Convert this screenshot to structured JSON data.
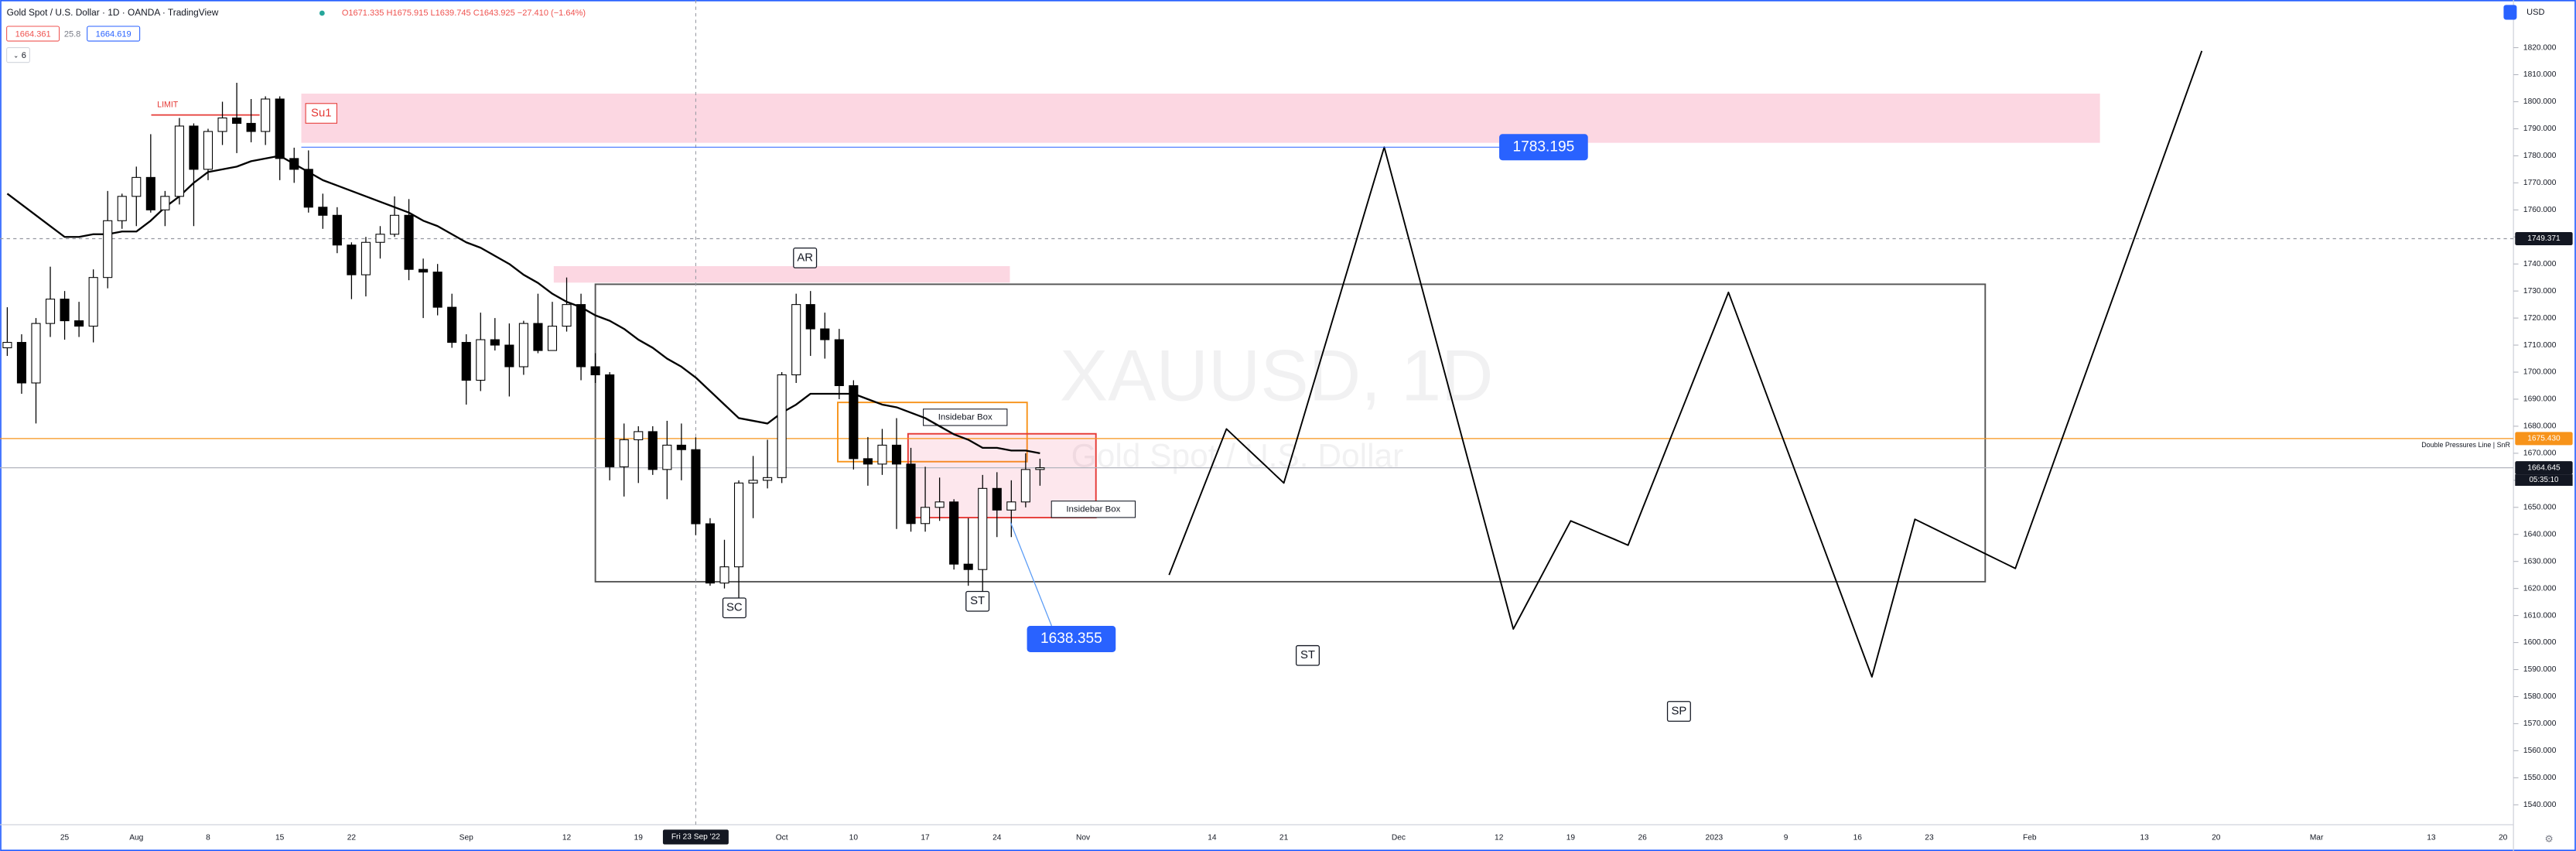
{
  "chart_data": {
    "type": "candlestick",
    "title": "Gold Spot / U.S. Dollar · 1D · OANDA · TradingView",
    "legend_values": "O1671.335 H1675.915 L1639.745 C1643.925 −27.410 (−1.64%)",
    "bid": 1664.361,
    "spread": 25.8,
    "ask": 1664.619,
    "indicators": 6,
    "currency": "USD",
    "watermark": "XAUUSD, 1D",
    "watermark_subtitle": "Gold Spot / U.S. Dollar",
    "crosshair_label": "Fri 23 Sep '22",
    "categories": [
      null,
      null,
      null,
      null,
      "25",
      null,
      null,
      null,
      null,
      "Aug",
      null,
      null,
      null,
      null,
      "8",
      null,
      null,
      null,
      null,
      "15",
      null,
      null,
      null,
      null,
      "22",
      null,
      null,
      null,
      null,
      null,
      null,
      null,
      "Sep",
      null,
      null,
      null,
      null,
      null,
      null,
      "12",
      null,
      null,
      null,
      null,
      "19",
      null,
      null,
      null,
      null,
      null,
      null,
      null,
      null,
      null,
      "Oct",
      null,
      null,
      null,
      null,
      "10",
      null,
      null,
      null,
      null,
      "17",
      null,
      null,
      null,
      null,
      "24",
      null,
      null,
      null,
      null,
      null,
      "Nov",
      null,
      null,
      null,
      null,
      null,
      null,
      null,
      null,
      "14",
      null,
      null,
      null,
      null,
      "21",
      null,
      null,
      null,
      null,
      null,
      null,
      null,
      "Dec",
      null,
      null,
      null,
      null,
      null,
      null,
      "12",
      null,
      null,
      null,
      null,
      "19",
      null,
      null,
      null,
      null,
      "26",
      null,
      null,
      null,
      null,
      "2023",
      null,
      null,
      null,
      null,
      "9",
      null,
      null,
      null,
      null,
      "16",
      null,
      null,
      null,
      null,
      "23",
      null,
      null,
      null,
      null,
      null,
      null,
      "Feb",
      null,
      null,
      null,
      null,
      null,
      null,
      null,
      "13",
      null,
      null,
      null,
      null,
      "20",
      null,
      null,
      null,
      null,
      null,
      null,
      "Mar",
      null,
      null,
      null,
      null,
      null,
      null,
      null,
      "13",
      null,
      null,
      null,
      null,
      "20"
    ],
    "open": [
      1709,
      1711,
      1696,
      1718,
      1727,
      1719,
      1717,
      1735,
      1756,
      1765,
      1772,
      1760,
      1765,
      1791,
      1775,
      1789,
      1794,
      1792,
      1789,
      1801,
      1779,
      1775,
      1761,
      1758,
      1747,
      1736,
      1748,
      1751,
      1758,
      1738,
      1737,
      1724,
      1711,
      1697,
      1712,
      1710,
      1702,
      1718,
      1708,
      1717,
      1725,
      1702,
      1699,
      1665,
      1675,
      1678,
      1664,
      1673,
      1671.335,
      1643.925,
      1622,
      1628,
      1659,
      1660,
      1661,
      1699,
      1725,
      1716,
      1712,
      1695,
      1668,
      1666,
      1673,
      1666,
      1644,
      1650,
      1652,
      1629,
      1627,
      1657,
      1649,
      1652,
      1664,
      null,
      null,
      null,
      null,
      null,
      null,
      null,
      null,
      null,
      null,
      null,
      null,
      null,
      null,
      null,
      null,
      null,
      null,
      null,
      null,
      null,
      null,
      null,
      null,
      null,
      null,
      null,
      null,
      null,
      null,
      null,
      null,
      null,
      null,
      null,
      null,
      null,
      null,
      null,
      null,
      null,
      null,
      null,
      null,
      null,
      null,
      null,
      null,
      null,
      null,
      null,
      null,
      null,
      null,
      null,
      null,
      null,
      null,
      null,
      null,
      null,
      null,
      null,
      null,
      null,
      null,
      null,
      null,
      null,
      null,
      null,
      null,
      null,
      null,
      null,
      null,
      null,
      null,
      null,
      null,
      null,
      null,
      null,
      null,
      null,
      null,
      null,
      null,
      null,
      null,
      null,
      null,
      null,
      null,
      null,
      null,
      null,
      null,
      null,
      null,
      null,
      null
    ],
    "high": [
      1724,
      1714,
      1720,
      1739,
      1730,
      1726,
      1738,
      1767,
      1766,
      1776,
      1788,
      1767,
      1794,
      1792,
      1790,
      1800,
      1807,
      1801,
      1802,
      1802,
      1783,
      1782,
      1766,
      1761,
      1748,
      1750,
      1754,
      1765,
      1764,
      1742,
      1740,
      1729,
      1714,
      1722,
      1720,
      1718,
      1719,
      1729,
      1726,
      1735,
      1729,
      1707,
      1700,
      1681,
      1680,
      1680,
      1682,
      1681,
      1675.915,
      1646,
      1638,
      1660,
      1669,
      1675,
      1700,
      1729,
      1730,
      1722,
      1716,
      1697,
      1676,
      1679,
      1683,
      1672,
      1665,
      1661,
      1653,
      1646,
      1662,
      1663,
      1660,
      1670,
      1668,
      null,
      null,
      null,
      null,
      null,
      null,
      null,
      null,
      null,
      null,
      null,
      null,
      null,
      null,
      null,
      null,
      null,
      null,
      null,
      null,
      null,
      null,
      null,
      null,
      null,
      null,
      null,
      null,
      null,
      null,
      null,
      null,
      null,
      null,
      null,
      null,
      null,
      null,
      null,
      null,
      null,
      null,
      null,
      null,
      null,
      null,
      null,
      null,
      null,
      null,
      null,
      null,
      null,
      null,
      null,
      null,
      null,
      null,
      null,
      null,
      null,
      null,
      null,
      null,
      null,
      null,
      null,
      null,
      null,
      null,
      null,
      null,
      null,
      null,
      null,
      null,
      null,
      null,
      null,
      null,
      null,
      null,
      null,
      null,
      null,
      null,
      null,
      null,
      null,
      null,
      null,
      null,
      null,
      null,
      null,
      null,
      null,
      null,
      null,
      null,
      null,
      null
    ],
    "low": [
      1706,
      1692,
      1681,
      1713,
      1712,
      1713,
      1711,
      1731,
      1753,
      1754,
      1759,
      1754,
      1762,
      1754,
      1771,
      1784,
      1781,
      1785,
      1784,
      1771,
      1770,
      1759,
      1753,
      1744,
      1727,
      1728,
      1742,
      1750,
      1734,
      1720,
      1721,
      1709,
      1688,
      1693,
      1708,
      1691,
      1699,
      1707,
      1708,
      1715,
      1697,
      1696,
      1660,
      1654,
      1659,
      1662,
      1653,
      1660,
      1639.745,
      1621,
      1620,
      1614,
      1646,
      1657,
      1659,
      1696,
      1706,
      1705,
      1690,
      1664,
      1658,
      1662,
      1642,
      1641,
      1641,
      1645,
      1627,
      1621,
      1618,
      1639,
      1639,
      1650,
      1658,
      null,
      null,
      null,
      null,
      null,
      null,
      null,
      null,
      null,
      null,
      null,
      null,
      null,
      null,
      null,
      null,
      null,
      null,
      null,
      null,
      null,
      null,
      null,
      null,
      null,
      null,
      null,
      null,
      null,
      null,
      null,
      null,
      null,
      null,
      null,
      null,
      null,
      null,
      null,
      null,
      null,
      null,
      null,
      null,
      null,
      null,
      null,
      null,
      null,
      null,
      null,
      null,
      null,
      null,
      null,
      null,
      null,
      null,
      null,
      null,
      null,
      null,
      null,
      null,
      null,
      null,
      null,
      null,
      null,
      null,
      null,
      null,
      null,
      null,
      null,
      null,
      null,
      null,
      null,
      null,
      null,
      null,
      null,
      null,
      null,
      null,
      null,
      null,
      null,
      null,
      null,
      null,
      null,
      null,
      null,
      null,
      null,
      null,
      null,
      null,
      null,
      null
    ],
    "close": [
      1711,
      1696,
      1718,
      1727,
      1719,
      1717,
      1735,
      1756,
      1765,
      1772,
      1760,
      1765,
      1791,
      1775,
      1789,
      1794,
      1792,
      1789,
      1801,
      1779,
      1775,
      1761,
      1758,
      1747,
      1736,
      1748,
      1751,
      1758,
      1738,
      1737,
      1724,
      1711,
      1697,
      1712,
      1710,
      1702,
      1718,
      1708,
      1717,
      1725,
      1702,
      1699,
      1665,
      1675,
      1678,
      1664,
      1673,
      1671.335,
      1643.925,
      1622,
      1628,
      1659,
      1660,
      1661,
      1699,
      1725,
      1716,
      1712,
      1695,
      1668,
      1666,
      1673,
      1666,
      1644,
      1650,
      1652,
      1629,
      1627,
      1657,
      1649,
      1652,
      1664,
      1664.645,
      null,
      null,
      null,
      null,
      null,
      null,
      null,
      null,
      null,
      null,
      null,
      null,
      null,
      null,
      null,
      null,
      null,
      null,
      null,
      null,
      null,
      null,
      null,
      null,
      null,
      null,
      null,
      null,
      null,
      null,
      null,
      null,
      null,
      null,
      null,
      null,
      null,
      null,
      null,
      null,
      null,
      null,
      null,
      null,
      null,
      null,
      null,
      null,
      null,
      null,
      null,
      null,
      null,
      null,
      null,
      null,
      null,
      null,
      null,
      null,
      null,
      null,
      null,
      null,
      null,
      null,
      null,
      null,
      null,
      null,
      null,
      null,
      null,
      null,
      null,
      null,
      null,
      null,
      null,
      null,
      null,
      null,
      null,
      null,
      null,
      null,
      null,
      null,
      null,
      null,
      null,
      null,
      null,
      null,
      null,
      null,
      null,
      null,
      null,
      null,
      null,
      null
    ],
    "ma": {
      "color": "#000000",
      "values": [
        1766,
        1762,
        1758,
        1754,
        1750,
        1750,
        1751,
        1751,
        1752,
        1752,
        1756,
        1761,
        1765,
        1770,
        1774,
        1775,
        1776,
        1778,
        1779,
        1780,
        1777,
        1774,
        1771,
        1769,
        1767,
        1765,
        1763,
        1761,
        1759,
        1756,
        1754,
        1751,
        1748,
        1746,
        1743,
        1740,
        1736,
        1733,
        1729,
        1726,
        1724,
        1721,
        1719,
        1716,
        1712,
        1709,
        1705,
        1702,
        1698,
        1693,
        1688,
        1683,
        1682,
        1681,
        1685,
        1688,
        1692,
        1692,
        1692,
        1692,
        1690,
        1688,
        1687,
        1685,
        1683,
        1680,
        1677,
        1675,
        1672,
        1672,
        1671,
        1671,
        1670,
        null,
        null,
        null,
        null,
        null,
        null,
        null,
        null,
        null,
        null,
        null,
        null,
        null,
        null,
        null,
        null,
        null,
        null,
        null,
        null,
        null,
        null,
        null,
        null,
        null,
        null,
        null,
        null,
        null,
        null,
        null,
        null,
        null,
        null,
        null,
        null,
        null,
        null,
        null,
        null,
        null,
        null,
        null,
        null,
        null,
        null,
        null,
        null,
        null,
        null,
        null,
        null,
        null,
        null,
        null,
        null,
        null,
        null,
        null,
        null,
        null,
        null,
        null,
        null,
        null,
        null,
        null,
        null,
        null,
        null,
        null,
        null,
        null,
        null,
        null,
        null,
        null,
        null,
        null,
        null,
        null,
        null,
        null,
        null,
        null,
        null,
        null,
        null,
        null,
        null,
        null,
        null,
        null,
        null,
        null,
        null,
        null,
        null,
        null,
        null,
        null,
        null
      ]
    },
    "projection": {
      "color": "#000000",
      "values": [
        null,
        null,
        null,
        null,
        null,
        null,
        null,
        null,
        null,
        null,
        null,
        null,
        null,
        null,
        null,
        null,
        null,
        null,
        null,
        null,
        null,
        null,
        null,
        null,
        null,
        null,
        null,
        null,
        null,
        null,
        null,
        null,
        null,
        null,
        null,
        null,
        null,
        null,
        null,
        null,
        null,
        null,
        null,
        null,
        null,
        null,
        null,
        null,
        null,
        null,
        null,
        null,
        null,
        null,
        null,
        null,
        null,
        null,
        null,
        null,
        null,
        null,
        null,
        null,
        null,
        null,
        null,
        null,
        null,
        null,
        null,
        null,
        null,
        null,
        null,
        null,
        null,
        null,
        null,
        null,
        null,
        1625,
        1638.5,
        1652,
        1665.5,
        1679,
        1674,
        1669,
        1664,
        1659,
        1676.7,
        1694.5,
        1712.2,
        1730,
        1747.7,
        1765.5,
        1783.195,
        1763.4,
        1743.6,
        1723.8,
        1704,
        1684.2,
        1664.4,
        1644.6,
        1624.8,
        1605,
        1615,
        1625,
        1635,
        1645,
        1642.8,
        1640.5,
        1638.3,
        1636,
        1649.4,
        1662.7,
        1676.1,
        1689.4,
        1702.8,
        1716.1,
        1729.5,
        1715.3,
        1701.1,
        1686.8,
        1672.6,
        1658.4,
        1644.2,
        1630,
        1615.8,
        1601.5,
        1587.3,
        1606.7,
        1626.2,
        1645.6,
        1643,
        1640.4,
        1637.8,
        1635.2,
        1632.6,
        1630,
        1627.4,
        1642.1,
        1656.8,
        1671.6,
        1686.3,
        1701,
        1715.7,
        1730.4,
        1745.2,
        1759.9,
        1774.6,
        1789.3,
        1804.1,
        1818.8,
        null,
        null,
        null,
        null,
        null,
        null,
        null,
        null,
        null,
        null,
        null
      ]
    },
    "price_lines": [
      {
        "value": 1749.371,
        "color": "#131722"
      },
      {
        "value": 1675.43,
        "value_label": "1675.430",
        "color": "#f7931a",
        "label": "Double Pressures Line | SnR"
      },
      {
        "value": 1664.645,
        "color": "#131722",
        "countdown": "05:35:10"
      }
    ],
    "zones": [
      {
        "label": "Su1",
        "ylim": [
          1784.8,
          1803
        ],
        "color": "rgba(242,54,110,0.2)"
      },
      {
        "ylim": [
          1733.1,
          1739.2
        ],
        "color": "rgba(242,54,110,0.2)"
      },
      {
        "ylim": [
          1622.5,
          1732.5
        ],
        "color": "#555555"
      },
      {
        "label": "Insidebar Box",
        "ylim": [
          1666.9,
          1688.8
        ],
        "color": "#f7931a"
      },
      {
        "label": "Insidebar Box",
        "ylim": [
          1646.2,
          1677.2
        ],
        "color": "#e53935"
      }
    ],
    "limit_label": "LIMIT",
    "markers": [
      "AR",
      "SC",
      "ST",
      "ST",
      "SP"
    ],
    "callouts": [
      1783.195,
      1638.355
    ],
    "ylim": [
      1533,
      1833
    ],
    "yticks": [
      {
        "value": 1540,
        "label": "1540.000"
      },
      {
        "value": 1550,
        "label": "1550.000"
      },
      {
        "value": 1560,
        "label": "1560.000"
      },
      {
        "value": 1570,
        "label": "1570.000"
      },
      {
        "value": 1580,
        "label": "1580.000"
      },
      {
        "value": 1590,
        "label": "1590.000"
      },
      {
        "value": 1600,
        "label": "1600.000"
      },
      {
        "value": 1610,
        "label": "1610.000"
      },
      {
        "value": 1620,
        "label": "1620.000"
      },
      {
        "value": 1630,
        "label": "1630.000"
      },
      {
        "value": 1640,
        "label": "1640.000"
      },
      {
        "value": 1650,
        "label": "1650.000"
      },
      {
        "value": 1660,
        "label": "1660.000"
      },
      {
        "value": 1670,
        "label": "1670.000"
      },
      {
        "value": 1680,
        "label": "1680.000"
      },
      {
        "value": 1690,
        "label": "1690.000"
      },
      {
        "value": 1700,
        "label": "1700.000"
      },
      {
        "value": 1710,
        "label": "1710.000"
      },
      {
        "value": 1720,
        "label": "1720.000"
      },
      {
        "value": 1730,
        "label": "1730.000"
      },
      {
        "value": 1740,
        "label": "1740.000"
      },
      {
        "value": 1750,
        "label": "1750.000"
      },
      {
        "value": 1760,
        "label": "1760.000"
      },
      {
        "value": 1770,
        "label": "1770.000"
      },
      {
        "value": 1780,
        "label": "1780.000"
      },
      {
        "value": 1790,
        "label": "1790.000"
      },
      {
        "value": 1800,
        "label": "1800.000"
      },
      {
        "value": 1810,
        "label": "1810.000"
      },
      {
        "value": 1820,
        "label": "1820.000"
      }
    ]
  }
}
